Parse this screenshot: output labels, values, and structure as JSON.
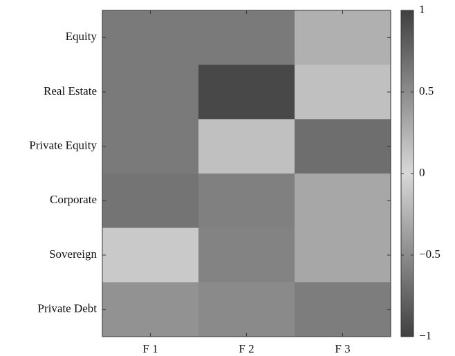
{
  "chart_data": {
    "type": "heatmap",
    "x_categories": [
      "F 1",
      "F 2",
      "F 3"
    ],
    "y_categories": [
      "Equity",
      "Real Estate",
      "Private Equity",
      "Corporate",
      "Sovereign",
      "Private Debt"
    ],
    "values": [
      [
        0.62,
        0.62,
        0.26
      ],
      [
        0.62,
        0.95,
        0.16
      ],
      [
        0.62,
        0.16,
        0.7
      ],
      [
        0.66,
        0.58,
        0.32
      ],
      [
        0.1,
        0.56,
        0.32
      ],
      [
        0.46,
        0.51,
        0.6
      ]
    ],
    "colormap": [
      "#404040",
      "#d8d8d8",
      "#404040"
    ],
    "zlim": [
      -1,
      1
    ],
    "colorbar_ticks": [
      {
        "value": -1,
        "label": "−1"
      },
      {
        "value": -0.5,
        "label": "−0.5"
      },
      0,
      0.5,
      1
    ]
  }
}
